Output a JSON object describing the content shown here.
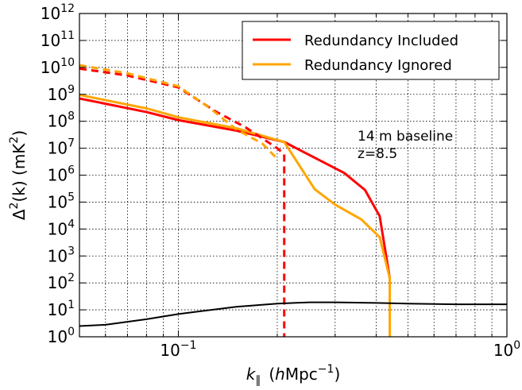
{
  "chart_data": {
    "type": "line",
    "xscale": "log",
    "yscale": "log",
    "xlim": [
      0.05,
      1.0
    ],
    "ylim": [
      1,
      1000000000000.0
    ],
    "grid": true,
    "xlabel_main": "k",
    "xlabel_sub": "∥",
    "xlabel_units_open": "(",
    "xlabel_units_h": "h",
    "xlabel_units_mpc": "Mpc",
    "xlabel_units_exp": "−1",
    "xlabel_units_close": ")",
    "ylabel_pre": "Δ",
    "ylabel_exp": "2",
    "ylabel_mid": "(k) (mK",
    "ylabel_post": ")",
    "x_ticks": [
      {
        "value": 0.1,
        "base": "10",
        "exp": "−1"
      },
      {
        "value": 1.0,
        "base": "10",
        "exp": "0"
      }
    ],
    "y_ticks": [
      {
        "value": 1,
        "base": "10",
        "exp": "0"
      },
      {
        "value": 10,
        "base": "10",
        "exp": "1"
      },
      {
        "value": 100,
        "base": "10",
        "exp": "2"
      },
      {
        "value": 1000,
        "base": "10",
        "exp": "3"
      },
      {
        "value": 10000,
        "base": "10",
        "exp": "4"
      },
      {
        "value": 100000,
        "base": "10",
        "exp": "5"
      },
      {
        "value": 1000000,
        "base": "10",
        "exp": "6"
      },
      {
        "value": 10000000,
        "base": "10",
        "exp": "7"
      },
      {
        "value": 100000000,
        "base": "10",
        "exp": "8"
      },
      {
        "value": 1000000000,
        "base": "10",
        "exp": "9"
      },
      {
        "value": 10000000000,
        "base": "10",
        "exp": "10"
      },
      {
        "value": 100000000000,
        "base": "10",
        "exp": "11"
      },
      {
        "value": 1000000000000,
        "base": "10",
        "exp": "12"
      }
    ],
    "legend": {
      "placement": "top-right",
      "entries": [
        {
          "label": "Redundancy Included",
          "color": "#ff0000"
        },
        {
          "label": "Redundancy Ignored",
          "color": "#ffa500"
        }
      ]
    },
    "annotation_lines": [
      "14 m baseline",
      "z=8.5"
    ],
    "series": [
      {
        "key": "included_solid",
        "color": "#ff0000",
        "style": "solid",
        "points": [
          [
            0.05,
            700000000.0
          ],
          [
            0.08,
            220000000.0
          ],
          [
            0.1,
            110000000.0
          ],
          [
            0.15,
            45000000.0
          ],
          [
            0.21,
            17000000.0
          ],
          [
            0.27,
            3500000.0
          ],
          [
            0.32,
            1200000.0
          ],
          [
            0.37,
            280000.0
          ],
          [
            0.41,
            30000.0
          ],
          [
            0.44,
            150.0
          ]
        ]
      },
      {
        "key": "ignored_solid",
        "color": "#ffa500",
        "style": "solid",
        "points": [
          [
            0.05,
            950000000.0
          ],
          [
            0.08,
            300000000.0
          ],
          [
            0.1,
            140000000.0
          ],
          [
            0.15,
            55000000.0
          ],
          [
            0.21,
            17000000.0
          ],
          [
            0.26,
            300000.0
          ],
          [
            0.3,
            80000.0
          ],
          [
            0.36,
            23000.0
          ],
          [
            0.41,
            5000.0
          ],
          [
            0.44,
            150.0
          ],
          [
            0.44,
            1
          ]
        ]
      },
      {
        "key": "included_dashed",
        "color": "#ff0000",
        "style": "dashed",
        "points": [
          [
            0.05,
            9000000000.0
          ],
          [
            0.07,
            5000000000.0
          ],
          [
            0.1,
            1800000000.0
          ],
          [
            0.13,
            230000000.0
          ],
          [
            0.16,
            60000000.0
          ],
          [
            0.2,
            10000000.0
          ],
          [
            0.21,
            6000000.0
          ],
          [
            0.21,
            1
          ]
        ]
      },
      {
        "key": "ignored_dashed",
        "color": "#ffa500",
        "style": "dashed",
        "points": [
          [
            0.05,
            12000000000.0
          ],
          [
            0.07,
            6000000000.0
          ],
          [
            0.1,
            2000000000.0
          ],
          [
            0.125,
            300000000.0
          ],
          [
            0.15,
            50000000.0
          ],
          [
            0.18,
            15000000.0
          ],
          [
            0.2,
            4000000.0
          ]
        ]
      },
      {
        "key": "noise",
        "color": "#000000",
        "style": "solid",
        "points": [
          [
            0.05,
            2.5
          ],
          [
            0.06,
            2.8
          ],
          [
            0.08,
            4.5
          ],
          [
            0.1,
            7
          ],
          [
            0.15,
            13
          ],
          [
            0.2,
            17
          ],
          [
            0.25,
            19
          ],
          [
            0.3,
            19
          ],
          [
            0.4,
            18
          ],
          [
            0.5,
            17
          ],
          [
            0.7,
            16
          ],
          [
            1.0,
            16
          ]
        ]
      }
    ]
  }
}
